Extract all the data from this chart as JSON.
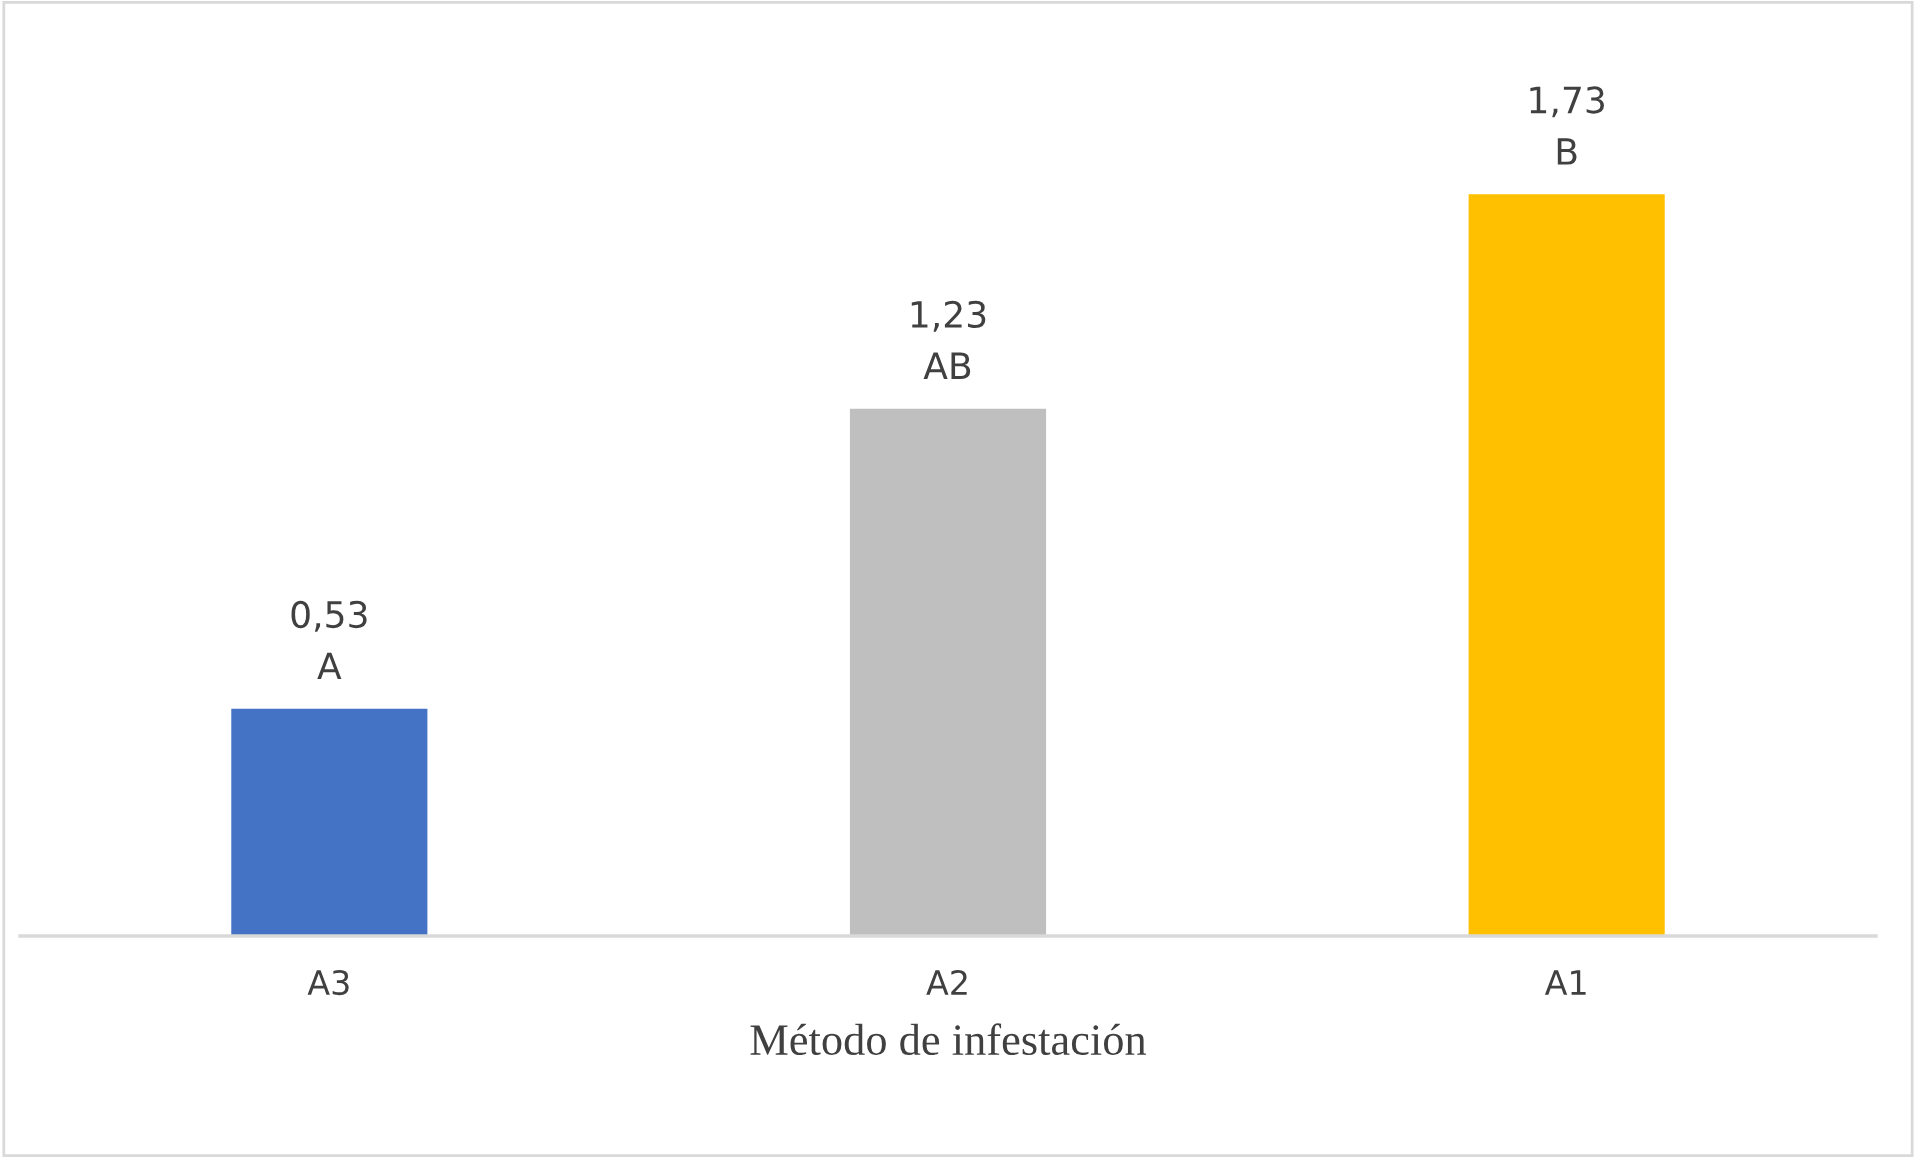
{
  "chart_data": {
    "type": "bar",
    "xlabel": "Método de infestación",
    "categories": [
      "A3",
      "A2",
      "A1"
    ],
    "values": [
      0.53,
      1.23,
      1.73
    ],
    "colors": [
      "#4472c4",
      "#bfbfbf",
      "#ffc000"
    ],
    "value_labels": [
      "0,53\nA",
      "1,23\nAB",
      "1,73\nB"
    ],
    "grid": false,
    "legend": false
  }
}
